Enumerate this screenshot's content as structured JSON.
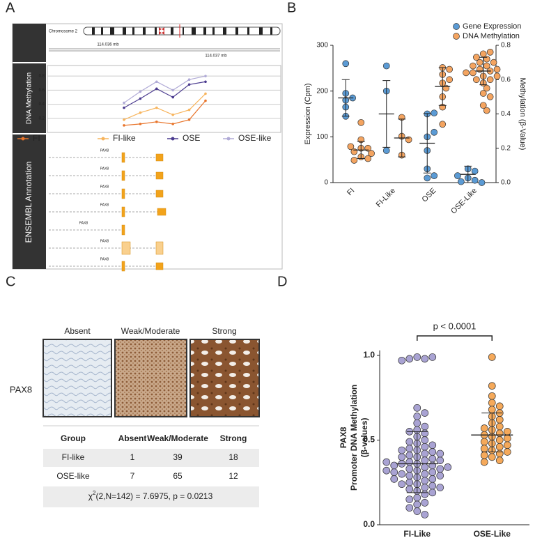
{
  "panels": [
    "A",
    "B",
    "C",
    "D"
  ],
  "panel_a": {
    "chromosome": "Chromosome 2",
    "scale_labels": [
      "114.036 mb",
      "114.037 mb"
    ],
    "track_labels": [
      "DNA Methylation",
      "ENSEMBL Annotation"
    ],
    "transcripts": [
      "PAX8",
      "PAX8",
      "PAX8",
      "PAX8",
      "PAX8",
      "PAX8",
      "PAX8"
    ]
  },
  "panel_c": {
    "stain_label": "PAX8",
    "columns": [
      "Absent",
      "Weak/Moderate",
      "Strong"
    ],
    "table": {
      "header": [
        "Group",
        "Absent",
        "Weak/Moderate",
        "Strong"
      ],
      "rows": [
        [
          "FI-like",
          1,
          39,
          18
        ],
        [
          "OSE-like",
          7,
          65,
          12
        ]
      ],
      "footer": [
        "χ",
        "2",
        "(2,N=142) = 7.6975, p = 0.0213"
      ]
    }
  },
  "chart_data": [
    {
      "type": "line",
      "ylim": [
        0,
        0.95
      ],
      "yticks": [
        0.2,
        0.4,
        0.6,
        0.8
      ],
      "grid": true,
      "legend": "bottom",
      "series": [
        {
          "name": "FI",
          "color": "#e8742a",
          "values": [
            0.1,
            0.12,
            0.15,
            0.12,
            0.18,
            0.45
          ]
        },
        {
          "name": "FI-like",
          "color": "#f7b45c",
          "values": [
            0.18,
            0.28,
            0.35,
            0.25,
            0.32,
            0.55
          ]
        },
        {
          "name": "OSE",
          "color": "#4b3b8f",
          "values": [
            0.35,
            0.48,
            0.62,
            0.5,
            0.68,
            0.72
          ]
        },
        {
          "name": "OSE-like",
          "color": "#b0aad6",
          "values": [
            0.42,
            0.58,
            0.72,
            0.6,
            0.75,
            0.8
          ]
        }
      ]
    },
    {
      "type": "dot",
      "categories": [
        "FI",
        "FI-Like",
        "OSE",
        "OSE-Like"
      ],
      "ylabel": "Expression (Cpm)",
      "y2label": "Methylation (β-Value)",
      "ylim": [
        0,
        300
      ],
      "yticks": [
        0,
        100,
        200,
        300
      ],
      "y2lim": [
        0,
        0.8
      ],
      "y2ticks": [
        {
          "value": 0,
          "label": "0.0"
        },
        0.2,
        0.4,
        0.6,
        0.8
      ],
      "legend": "top-right",
      "series": [
        {
          "name": "Gene Expression",
          "color": "#5b9bd5",
          "values": [
            [
              260,
              195,
              185,
              180,
              165,
              145
            ],
            [
              255,
              200,
              70
            ],
            [
              150,
              152,
              100,
              110,
              70,
              30,
              10,
              15
            ],
            [
              30,
              25,
              10,
              5,
              2,
              0,
              15
            ]
          ],
          "center": [
            185,
            150,
            86,
            18
          ],
          "whisker": [
            [
              145,
              225
            ],
            [
              77,
              223
            ],
            [
              21,
              151
            ],
            [
              0,
              36
            ]
          ]
        },
        {
          "name": "DNA Methylation",
          "color": "#f4a460",
          "axis": "y2",
          "values": [
            [
              0.35,
              0.25,
              0.2,
              0.2,
              0.18,
              0.15,
              0.14,
              0.17,
              0.21,
              0.13
            ],
            [
              0.38,
              0.27,
              0.25,
              0.16
            ],
            [
              0.67,
              0.66,
              0.63,
              0.58,
              0.55,
              0.5,
              0.44,
              0.34,
              0.6
            ],
            [
              0.75,
              0.76,
              0.73,
              0.72,
              0.7,
              0.68,
              0.66,
              0.65,
              0.64,
              0.62,
              0.6,
              0.58,
              0.55,
              0.52,
              0.5,
              0.7,
              0.68,
              0.66,
              0.64,
              0.62,
              0.6,
              0.45,
              0.42
            ]
          ],
          "center": [
            0.19,
            0.26,
            0.56,
            0.65
          ],
          "whisker": [
            [
              0.14,
              0.24
            ],
            [
              0.15,
              0.37
            ],
            [
              0.45,
              0.67
            ],
            [
              0.57,
              0.73
            ]
          ]
        }
      ]
    },
    {
      "type": "dot",
      "categories": [
        "FI-Like",
        "OSE-Like"
      ],
      "ylabel": [
        "PAX8",
        "Promoter DNA Methylation",
        "(β-values)"
      ],
      "ylim": [
        0,
        1.03
      ],
      "yticks": [
        {
          "value": 0,
          "label": "0.0"
        },
        {
          "value": 0.5,
          "label": "0.5"
        },
        {
          "value": 1,
          "label": "1.0"
        }
      ],
      "annotation": "p < 0.0001",
      "series": [
        {
          "color": [
            "#a9a3d3",
            "#f5a95a"
          ],
          "values": [
            [
              0.99,
              0.98,
              0.98,
              0.99,
              0.97,
              0.69,
              0.66,
              0.64,
              0.6,
              0.58,
              0.56,
              0.55,
              0.54,
              0.52,
              0.5,
              0.49,
              0.48,
              0.47,
              0.46,
              0.45,
              0.44,
              0.43,
              0.42,
              0.41,
              0.4,
              0.4,
              0.39,
              0.38,
              0.37,
              0.36,
              0.36,
              0.35,
              0.34,
              0.33,
              0.32,
              0.31,
              0.3,
              0.3,
              0.29,
              0.28,
              0.27,
              0.26,
              0.25,
              0.24,
              0.23,
              0.22,
              0.21,
              0.2,
              0.19,
              0.18,
              0.16,
              0.15,
              0.13,
              0.12,
              0.1,
              0.08,
              0.06,
              0.38,
              0.35,
              0.33,
              0.31,
              0.29,
              0.27,
              0.42,
              0.44,
              0.24,
              0.22,
              0.34,
              0.37,
              0.32
            ],
            [
              0.99,
              0.82,
              0.76,
              0.72,
              0.7,
              0.68,
              0.66,
              0.64,
              0.62,
              0.6,
              0.58,
              0.57,
              0.56,
              0.55,
              0.54,
              0.53,
              0.52,
              0.51,
              0.5,
              0.49,
              0.48,
              0.47,
              0.46,
              0.45,
              0.44,
              0.43,
              0.42,
              0.41,
              0.4,
              0.38,
              0.37
            ]
          ],
          "center": [
            0.36,
            0.53
          ],
          "whisker": [
            [
              0.19,
              0.55
            ],
            [
              0.43,
              0.66
            ]
          ]
        }
      ]
    }
  ]
}
